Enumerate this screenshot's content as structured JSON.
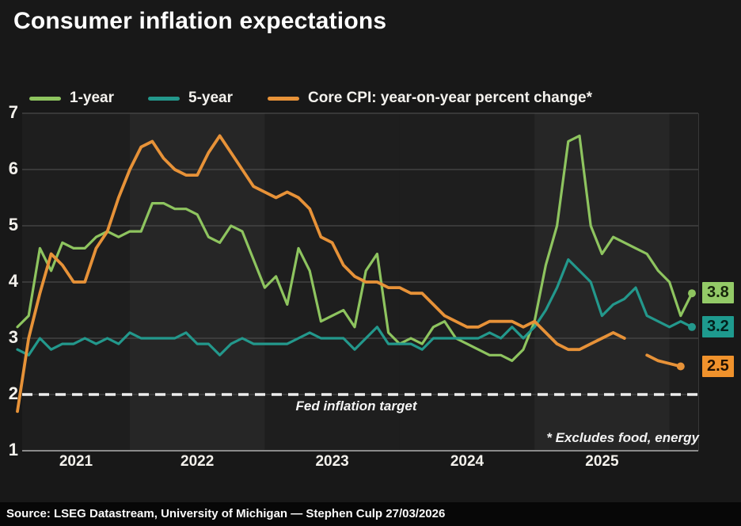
{
  "title": "Consumer inflation expectations",
  "annotations": {
    "fed_target_label": "Fed inflation target",
    "footnote": "* Excludes food, energy"
  },
  "source": "Source: LSEG Datastream, University of Michigan — Stephen Culp 27/03/2026",
  "colors": {
    "background": "#181818",
    "band_dark": "#1e1e1e",
    "band_light": "#262626",
    "gridline": "#4a4a4a",
    "axis_base": "#8a8a8a",
    "fed_target_line": "#ededed"
  },
  "chart_data": {
    "type": "line",
    "title": "Consumer inflation expectations",
    "x_frequency": "monthly",
    "x_start": "2021-03",
    "x_end": "2026-03",
    "x_tick_labels": [
      "2021",
      "2022",
      "2023",
      "2024",
      "2025"
    ],
    "y_ticks": [
      7,
      6,
      5,
      4,
      3,
      2,
      1
    ],
    "ylim": [
      1,
      7
    ],
    "grid": "horizontal",
    "legend_position": "top",
    "fed_inflation_target": 2,
    "months": [
      "2021-03",
      "2021-04",
      "2021-05",
      "2021-06",
      "2021-07",
      "2021-08",
      "2021-09",
      "2021-10",
      "2021-11",
      "2021-12",
      "2022-01",
      "2022-02",
      "2022-03",
      "2022-04",
      "2022-05",
      "2022-06",
      "2022-07",
      "2022-08",
      "2022-09",
      "2022-10",
      "2022-11",
      "2022-12",
      "2023-01",
      "2023-02",
      "2023-03",
      "2023-04",
      "2023-05",
      "2023-06",
      "2023-07",
      "2023-08",
      "2023-09",
      "2023-10",
      "2023-11",
      "2023-12",
      "2024-01",
      "2024-02",
      "2024-03",
      "2024-04",
      "2024-05",
      "2024-06",
      "2024-07",
      "2024-08",
      "2024-09",
      "2024-10",
      "2024-11",
      "2024-12",
      "2025-01",
      "2025-02",
      "2025-03",
      "2025-04",
      "2025-05",
      "2025-06",
      "2025-07",
      "2025-08",
      "2025-09",
      "2025-10",
      "2025-11",
      "2025-12",
      "2026-01",
      "2026-02",
      "2026-03"
    ],
    "series": [
      {
        "name": "1-year",
        "color": "#8ec45f",
        "end_label": "3.8",
        "end_label_bg": "#93ca67",
        "end_label_fg": "#17250b",
        "values": [
          3.2,
          3.4,
          4.6,
          4.2,
          4.7,
          4.6,
          4.6,
          4.8,
          4.9,
          4.8,
          4.9,
          4.9,
          5.4,
          5.4,
          5.3,
          5.3,
          5.2,
          4.8,
          4.7,
          5.0,
          4.9,
          4.4,
          3.9,
          4.1,
          3.6,
          4.6,
          4.2,
          3.3,
          3.4,
          3.5,
          3.2,
          4.2,
          4.5,
          3.1,
          2.9,
          3.0,
          2.9,
          3.2,
          3.3,
          3.0,
          2.9,
          2.8,
          2.7,
          2.7,
          2.6,
          2.8,
          3.3,
          4.3,
          5.0,
          6.5,
          6.6,
          5.0,
          4.5,
          4.8,
          4.7,
          4.6,
          4.5,
          4.2,
          4.0,
          3.4,
          3.8
        ]
      },
      {
        "name": "5-year",
        "color": "#23988c",
        "end_label": "3.2",
        "end_label_bg": "#1e9a8e",
        "end_label_fg": "#03201d",
        "values": [
          2.8,
          2.7,
          3.0,
          2.8,
          2.9,
          2.9,
          3.0,
          2.9,
          3.0,
          2.9,
          3.1,
          3.0,
          3.0,
          3.0,
          3.0,
          3.1,
          2.9,
          2.9,
          2.7,
          2.9,
          3.0,
          2.9,
          2.9,
          2.9,
          2.9,
          3.0,
          3.1,
          3.0,
          3.0,
          3.0,
          2.8,
          3.0,
          3.2,
          2.9,
          2.9,
          2.9,
          2.8,
          3.0,
          3.0,
          3.0,
          3.0,
          3.0,
          3.1,
          3.0,
          3.2,
          3.0,
          3.2,
          3.5,
          3.9,
          4.4,
          4.2,
          4.0,
          3.4,
          3.6,
          3.7,
          3.9,
          3.4,
          3.3,
          3.2,
          3.3,
          3.2
        ]
      },
      {
        "name": "Core CPI: year-on-year percent change*",
        "color": "#e79238",
        "end_label": "2.5",
        "end_label_bg": "#f0922c",
        "end_label_fg": "#211103",
        "values": [
          1.7,
          3.0,
          3.8,
          4.5,
          4.3,
          4.0,
          4.0,
          4.6,
          4.9,
          5.5,
          6.0,
          6.4,
          6.5,
          6.2,
          6.0,
          5.9,
          5.9,
          6.3,
          6.6,
          6.3,
          6.0,
          5.7,
          5.6,
          5.5,
          5.6,
          5.5,
          5.3,
          4.8,
          4.7,
          4.3,
          4.1,
          4.0,
          4.0,
          3.9,
          3.9,
          3.8,
          3.8,
          3.6,
          3.4,
          3.3,
          3.2,
          3.2,
          3.3,
          3.3,
          3.3,
          3.2,
          3.3,
          3.1,
          2.9,
          2.8,
          2.8,
          2.9,
          3.0,
          3.1,
          3.0,
          null,
          2.7,
          2.6,
          2.55,
          2.5,
          null
        ]
      }
    ]
  }
}
